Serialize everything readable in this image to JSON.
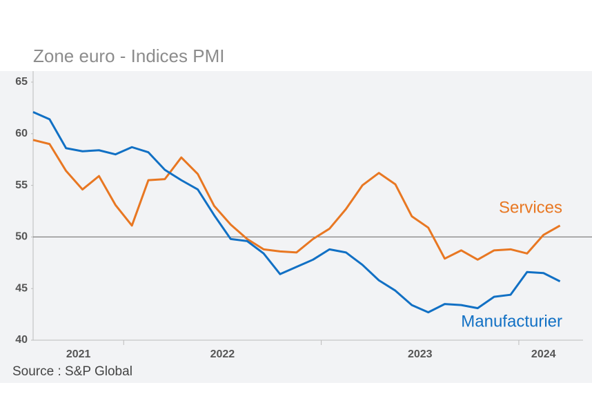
{
  "chart_data": {
    "type": "line",
    "title": "Zone euro - Indices PMI",
    "source": "Source : S&P Global",
    "x": [
      0,
      1,
      2,
      3,
      4,
      5,
      6,
      7,
      8,
      9,
      10,
      11,
      12,
      13,
      14,
      15,
      16,
      17,
      18,
      19,
      20,
      21,
      22,
      23,
      24,
      25,
      26,
      27,
      28,
      29,
      30,
      31,
      32
    ],
    "xlim": [
      0,
      33.4
    ],
    "x_groups": [
      {
        "label": "2021",
        "from": 0,
        "to": 5
      },
      {
        "label": "2022",
        "from": 6,
        "to": 17
      },
      {
        "label": "2023",
        "from": 18,
        "to": 29
      },
      {
        "label": "2024",
        "from": 30,
        "to": 32
      }
    ],
    "series": [
      {
        "name": "Services",
        "color": "#e87722",
        "values": [
          59.4,
          59.0,
          56.4,
          54.6,
          55.9,
          53.1,
          51.1,
          55.5,
          55.6,
          57.7,
          56.1,
          53.0,
          51.2,
          49.8,
          48.8,
          48.6,
          48.5,
          49.8,
          50.8,
          52.7,
          55.0,
          56.2,
          55.1,
          52.0,
          50.9,
          47.9,
          48.7,
          47.8,
          48.7,
          48.8,
          48.4,
          50.2,
          51.1
        ]
      },
      {
        "name": "Manufacturier",
        "color": "#1170c4",
        "values": [
          62.1,
          61.4,
          58.6,
          58.3,
          58.4,
          58.0,
          58.7,
          58.2,
          56.5,
          55.5,
          54.6,
          52.1,
          49.8,
          49.6,
          48.4,
          46.4,
          47.1,
          47.8,
          48.8,
          48.5,
          47.3,
          45.8,
          44.8,
          43.4,
          42.7,
          43.5,
          43.4,
          43.1,
          44.2,
          44.4,
          46.6,
          46.5,
          45.7
        ]
      }
    ],
    "ylim": [
      40,
      65
    ],
    "yticks": [
      40,
      45,
      50,
      55,
      60,
      65
    ],
    "reference_line": 50
  }
}
